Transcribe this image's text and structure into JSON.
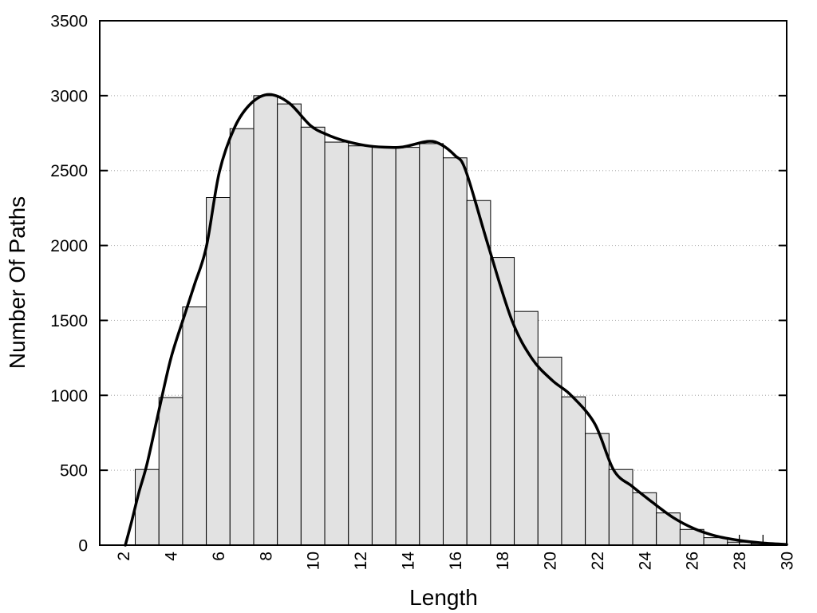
{
  "chart_data": {
    "type": "bar",
    "title": "",
    "xlabel": "Length",
    "ylabel": "Number Of Paths",
    "xlim": [
      1,
      30
    ],
    "ylim": [
      0,
      3500
    ],
    "x_tick_labels": [
      "2",
      "4",
      "6",
      "8",
      "10",
      "12",
      "14",
      "16",
      "18",
      "20",
      "22",
      "24",
      "26",
      "28",
      "30"
    ],
    "x_tick_values": [
      2,
      4,
      6,
      8,
      10,
      12,
      14,
      16,
      18,
      20,
      22,
      24,
      26,
      28,
      30
    ],
    "y_tick_labels": [
      "0",
      "500",
      "1000",
      "1500",
      "2000",
      "2500",
      "3000",
      "3500"
    ],
    "y_tick_values": [
      0,
      500,
      1000,
      1500,
      2000,
      2500,
      3000,
      3500
    ],
    "grid": "horizontal dotted lines at major y ticks",
    "legend": "none",
    "bar_width": 1,
    "categories": [
      3,
      4,
      5,
      6,
      7,
      8,
      9,
      10,
      11,
      12,
      13,
      14,
      15,
      16,
      17,
      18,
      19,
      20,
      21,
      22,
      23,
      24,
      25,
      26,
      27,
      28,
      29
    ],
    "values": [
      505,
      985,
      1590,
      2320,
      2780,
      3000,
      2945,
      2790,
      2690,
      2665,
      2655,
      2655,
      2680,
      2585,
      2300,
      1920,
      1560,
      1255,
      990,
      745,
      505,
      350,
      215,
      105,
      50,
      20,
      10
    ],
    "curve": {
      "name": "smoothed-frequency-curve",
      "points": [
        [
          2.08,
          0
        ],
        [
          2.35,
          160
        ],
        [
          2.65,
          350
        ],
        [
          3.0,
          545
        ],
        [
          3.5,
          900
        ],
        [
          4.0,
          1245
        ],
        [
          4.55,
          1520
        ],
        [
          5.0,
          1740
        ],
        [
          5.5,
          1990
        ],
        [
          6.05,
          2490
        ],
        [
          6.7,
          2790
        ],
        [
          7.4,
          2950
        ],
        [
          8.15,
          3008
        ],
        [
          9.0,
          2950
        ],
        [
          9.9,
          2800
        ],
        [
          10.6,
          2740
        ],
        [
          11.3,
          2700
        ],
        [
          12.2,
          2668
        ],
        [
          13.0,
          2656
        ],
        [
          13.8,
          2658
        ],
        [
          14.85,
          2695
        ],
        [
          15.4,
          2675
        ],
        [
          16.0,
          2600
        ],
        [
          16.45,
          2500
        ],
        [
          17.4,
          2000
        ],
        [
          18.4,
          1500
        ],
        [
          19.25,
          1245
        ],
        [
          20.1,
          1100
        ],
        [
          20.9,
          1000
        ],
        [
          21.9,
          810
        ],
        [
          22.7,
          500
        ],
        [
          23.5,
          390
        ],
        [
          24.3,
          290
        ],
        [
          25.2,
          185
        ],
        [
          26.1,
          110
        ],
        [
          27.0,
          62
        ],
        [
          28.0,
          32
        ],
        [
          29.0,
          14
        ],
        [
          30.0,
          5
        ]
      ]
    },
    "tail_tick_marks_x": [
      28,
      29
    ],
    "colors": {
      "background": "#ffffff",
      "bar_fill": "#e2e2e2",
      "bar_border": "#000000",
      "curve": "#000000",
      "grid": "#b5b5b5",
      "border": "#000000",
      "text": "#000000"
    }
  }
}
